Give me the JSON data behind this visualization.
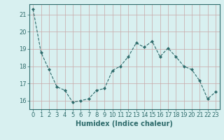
{
  "x": [
    0,
    1,
    2,
    3,
    4,
    5,
    6,
    7,
    8,
    9,
    10,
    11,
    12,
    13,
    14,
    15,
    16,
    17,
    18,
    19,
    20,
    21,
    22,
    23
  ],
  "y": [
    21.3,
    18.8,
    17.8,
    16.8,
    16.6,
    15.9,
    16.0,
    16.1,
    16.6,
    16.7,
    17.75,
    18.0,
    18.55,
    19.35,
    19.1,
    19.45,
    18.55,
    19.05,
    18.55,
    18.0,
    17.8,
    17.15,
    16.1,
    16.5
  ],
  "line_color": "#2e6b6b",
  "marker": "D",
  "marker_size": 2,
  "bg_color": "#d8f0f0",
  "grid_color": "#c8a8a8",
  "xlabel": "Humidex (Indice chaleur)",
  "ylim": [
    15.5,
    21.6
  ],
  "xlim": [
    -0.5,
    23.5
  ],
  "yticks": [
    16,
    17,
    18,
    19,
    20,
    21
  ],
  "xticks": [
    0,
    1,
    2,
    3,
    4,
    5,
    6,
    7,
    8,
    9,
    10,
    11,
    12,
    13,
    14,
    15,
    16,
    17,
    18,
    19,
    20,
    21,
    22,
    23
  ],
  "tick_color": "#2e6b6b",
  "label_color": "#2e6b6b",
  "font_size_axis": 6,
  "font_size_xlabel": 7,
  "linewidth": 0.8
}
